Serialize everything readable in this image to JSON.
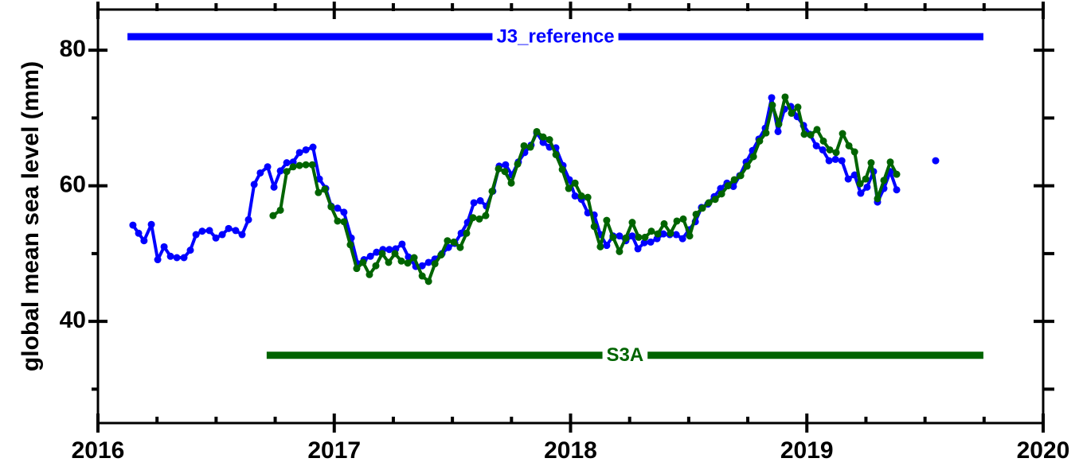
{
  "chart_data": {
    "type": "line",
    "y_label": "global mean sea level (mm)",
    "xlim": [
      2016,
      2020
    ],
    "xticks": [
      2016,
      2017,
      2018,
      2019,
      2020
    ],
    "xminorticks": [
      2016.25,
      2016.5,
      2016.75,
      2017.25,
      2017.5,
      2017.75,
      2018.25,
      2018.5,
      2018.75,
      2019.25,
      2019.5,
      2019.75
    ],
    "ylim": [
      25,
      86
    ],
    "yticks": [
      40,
      60,
      80
    ],
    "yminorticks": [
      30,
      50,
      70
    ],
    "series": [
      {
        "name": "J3_reference",
        "color": "#0000ff",
        "level": 82,
        "span": [
          2016.125,
          2019.747
        ],
        "x": [
          2016.148,
          2016.172,
          2016.195,
          2016.226,
          2016.253,
          2016.28,
          2016.307,
          2016.334,
          2016.364,
          2016.391,
          2016.415,
          2016.441,
          2016.472,
          2016.499,
          2016.526,
          2016.553,
          2016.583,
          2016.61,
          2016.637,
          2016.661,
          2016.687,
          2016.718,
          2016.745,
          2016.772,
          2016.799,
          2016.826,
          2016.853,
          2016.88,
          2016.91,
          2016.937,
          2016.964,
          2016.987,
          2017.014,
          2017.041,
          2017.072,
          2017.099,
          2017.126,
          2017.153,
          2017.179,
          2017.206,
          2017.233,
          2017.26,
          2017.287,
          2017.314,
          2017.345,
          2017.372,
          2017.399,
          2017.426,
          2017.456,
          2017.483,
          2017.51,
          2017.537,
          2017.564,
          2017.591,
          2017.618,
          2017.644,
          2017.671,
          2017.698,
          2017.725,
          2017.752,
          2017.779,
          2017.806,
          2017.833,
          2017.857,
          2017.884,
          2017.911,
          2017.938,
          2017.968,
          2017.995,
          2018.019,
          2018.046,
          2018.073,
          2018.1,
          2018.126,
          2018.153,
          2018.18,
          2018.207,
          2018.234,
          2018.261,
          2018.285,
          2018.312,
          2018.339,
          2018.366,
          2018.393,
          2018.42,
          2018.447,
          2018.474,
          2018.501,
          2018.528,
          2018.554,
          2018.581,
          2018.608,
          2018.635,
          2018.662,
          2018.689,
          2018.716,
          2018.743,
          2018.77,
          2018.797,
          2018.824,
          2018.851,
          2018.878,
          2018.905,
          2018.932,
          2018.959,
          2018.986,
          2019.013,
          2019.04,
          2019.067,
          2019.094,
          2019.121,
          2019.148,
          2019.175,
          2019.202,
          2019.228,
          2019.255,
          2019.282,
          2019.299,
          2019.326,
          2019.353,
          2019.38,
          2019.545
        ],
        "values": [
          54.2,
          53.0,
          51.9,
          54.3,
          49.1,
          51.0,
          49.6,
          49.4,
          49.4,
          50.5,
          52.8,
          53.3,
          53.4,
          52.3,
          52.8,
          53.7,
          53.4,
          52.8,
          55.0,
          60.2,
          61.9,
          62.8,
          59.8,
          62.2,
          63.4,
          63.5,
          64.9,
          65.3,
          65.7,
          61.0,
          59.6,
          57.0,
          56.7,
          56.1,
          52.3,
          48.5,
          49.1,
          49.6,
          50.2,
          50.6,
          50.6,
          50.7,
          51.4,
          49.5,
          48.1,
          48.2,
          48.7,
          49.2,
          50.0,
          50.9,
          51.5,
          53.0,
          54.6,
          57.5,
          57.8,
          57.0,
          59.2,
          62.9,
          63.1,
          61.6,
          63.5,
          64.9,
          66.0,
          67.8,
          66.4,
          65.7,
          65.6,
          63.0,
          60.9,
          58.5,
          58.0,
          56.0,
          55.7,
          52.8,
          51.2,
          52.6,
          52.6,
          51.9,
          52.6,
          50.7,
          51.6,
          51.7,
          52.2,
          52.9,
          52.8,
          52.8,
          52.2,
          53.5,
          54.7,
          56.8,
          57.3,
          58.4,
          59.6,
          60.4,
          59.9,
          61.5,
          63.5,
          65.2,
          66.9,
          68.5,
          73.0,
          68.0,
          71.3,
          71.7,
          70.2,
          68.9,
          67.6,
          65.9,
          65.3,
          63.7,
          63.9,
          63.7,
          61.0,
          61.6,
          58.9,
          59.8,
          62.1,
          57.6,
          59.6,
          62.1,
          59.4,
          63.7
        ]
      },
      {
        "name": "S3A",
        "color": "#006400",
        "level": 35,
        "span": [
          2016.714,
          2019.747
        ],
        "x": [
          2016.741,
          2016.772,
          2016.799,
          2016.826,
          2016.853,
          2016.88,
          2016.907,
          2016.933,
          2016.96,
          2016.987,
          2017.014,
          2017.041,
          2017.068,
          2017.095,
          2017.122,
          2017.149,
          2017.176,
          2017.203,
          2017.23,
          2017.257,
          2017.284,
          2017.311,
          2017.338,
          2017.372,
          2017.399,
          2017.426,
          2017.452,
          2017.479,
          2017.506,
          2017.533,
          2017.56,
          2017.587,
          2017.614,
          2017.641,
          2017.668,
          2017.695,
          2017.722,
          2017.749,
          2017.776,
          2017.803,
          2017.83,
          2017.857,
          2017.884,
          2017.911,
          2017.938,
          2017.965,
          2017.992,
          2018.019,
          2018.046,
          2018.073,
          2018.1,
          2018.126,
          2018.153,
          2018.18,
          2018.207,
          2018.234,
          2018.261,
          2018.288,
          2018.315,
          2018.342,
          2018.369,
          2018.396,
          2018.423,
          2018.45,
          2018.477,
          2018.504,
          2018.531,
          2018.558,
          2018.585,
          2018.612,
          2018.639,
          2018.666,
          2018.693,
          2018.72,
          2018.747,
          2018.774,
          2018.8,
          2018.827,
          2018.854,
          2018.881,
          2018.908,
          2018.935,
          2018.962,
          2018.989,
          2019.016,
          2019.043,
          2019.07,
          2019.097,
          2019.124,
          2019.151,
          2019.178,
          2019.202,
          2019.225,
          2019.249,
          2019.272,
          2019.299,
          2019.326,
          2019.353,
          2019.38
        ],
        "values": [
          55.6,
          56.4,
          62.1,
          62.8,
          63.0,
          63.1,
          63.1,
          59.0,
          59.5,
          56.9,
          54.8,
          54.7,
          51.3,
          47.8,
          48.7,
          46.9,
          48.2,
          50.0,
          48.7,
          50.0,
          48.9,
          48.6,
          49.4,
          46.7,
          45.9,
          48.5,
          49.8,
          51.9,
          51.7,
          50.9,
          53.0,
          55.3,
          55.1,
          55.6,
          59.2,
          62.5,
          62.1,
          60.4,
          63.2,
          65.9,
          65.7,
          68.0,
          67.2,
          66.8,
          64.6,
          62.4,
          59.6,
          60.4,
          58.5,
          58.3,
          54.0,
          51.0,
          54.9,
          52.4,
          50.3,
          52.3,
          54.6,
          52.4,
          52.4,
          53.3,
          52.9,
          54.4,
          53.0,
          54.8,
          55.1,
          52.6,
          55.8,
          56.7,
          57.5,
          58.0,
          58.8,
          60.0,
          60.9,
          61.5,
          62.9,
          64.3,
          66.6,
          67.8,
          71.9,
          69.1,
          73.1,
          70.7,
          71.6,
          67.6,
          67.5,
          68.3,
          66.6,
          65.3,
          64.9,
          67.7,
          65.9,
          65.0,
          60.3,
          61.0,
          63.4,
          58.1,
          60.8,
          63.5,
          61.7
        ]
      }
    ]
  }
}
